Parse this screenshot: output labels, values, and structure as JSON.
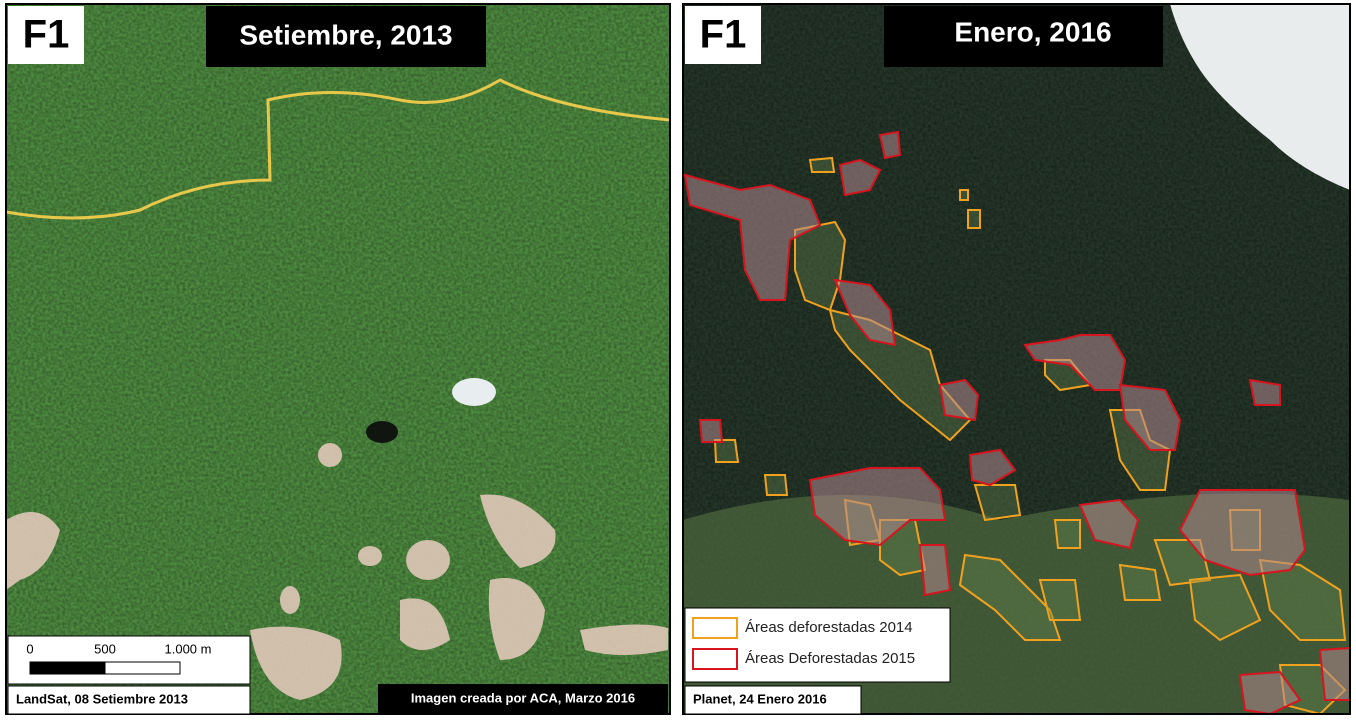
{
  "panels": [
    {
      "label": "F1",
      "title": "Setiembre, 2013",
      "scale_bar": {
        "labels": [
          "0",
          "500",
          "1.000 m"
        ]
      },
      "source": "LandSat, 08 Setiembre 2013",
      "credit": "Imagen creada por ACA, Marzo 2016"
    },
    {
      "label": "F1",
      "title": "Enero, 2016",
      "legend": [
        {
          "label": "Áreas deforestadas 2014",
          "color": "#f0a21e"
        },
        {
          "label": "Áreas Deforestadas 2015",
          "color": "#d8141e"
        }
      ],
      "source": "Planet, 24 Enero 2016"
    }
  ]
}
